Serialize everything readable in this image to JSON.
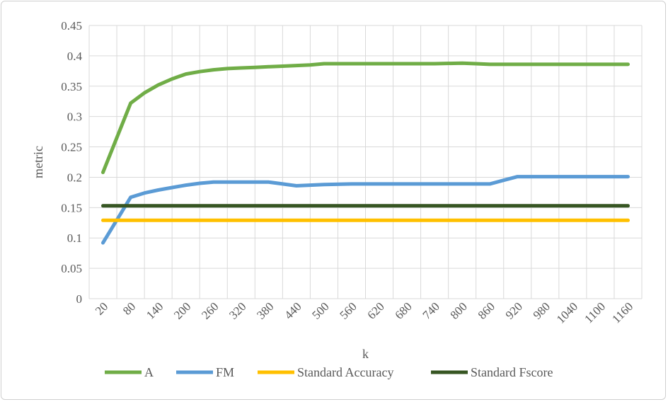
{
  "chart_data": {
    "type": "line",
    "title": "",
    "xlabel": "k",
    "ylabel": "metric",
    "ylim": [
      0,
      0.45
    ],
    "yticks": [
      "0",
      "0.05",
      "0.1",
      "0.15",
      "0.2",
      "0.25",
      "0.3",
      "0.35",
      "0.4",
      "0.45"
    ],
    "x": [
      20,
      80,
      140,
      200,
      260,
      320,
      380,
      440,
      500,
      560,
      620,
      680,
      740,
      800,
      860,
      920,
      980,
      1040,
      1100,
      1160
    ],
    "x_tick_labels": [
      "20",
      "80",
      "140",
      "200",
      "260",
      "320",
      "380",
      "440",
      "500",
      "560",
      "620",
      "680",
      "740",
      "800",
      "860",
      "920",
      "980",
      "1040",
      "1100",
      "1160"
    ],
    "grid": true,
    "legend_position": "bottom",
    "series": [
      {
        "name": "A",
        "color": "#70ad47",
        "x": [
          20,
          80,
          110,
          140,
          170,
          200,
          230,
          260,
          290,
          320,
          350,
          380,
          410,
          440,
          470,
          500,
          560,
          620,
          680,
          740,
          800,
          830,
          860,
          920,
          980,
          1040,
          1100,
          1160
        ],
        "values": [
          0.208,
          0.322,
          0.339,
          0.352,
          0.362,
          0.37,
          0.374,
          0.377,
          0.379,
          0.38,
          0.381,
          0.382,
          0.383,
          0.384,
          0.385,
          0.387,
          0.387,
          0.387,
          0.387,
          0.387,
          0.388,
          0.387,
          0.386,
          0.386,
          0.386,
          0.386,
          0.386,
          0.386
        ]
      },
      {
        "name": "FM",
        "color": "#5b9bd5",
        "x": [
          20,
          80,
          110,
          140,
          170,
          200,
          230,
          260,
          290,
          320,
          350,
          380,
          410,
          440,
          470,
          500,
          560,
          620,
          680,
          740,
          800,
          860,
          890,
          920,
          980,
          1040,
          1100,
          1160
        ],
        "values": [
          0.092,
          0.167,
          0.174,
          0.179,
          0.183,
          0.187,
          0.19,
          0.192,
          0.192,
          0.192,
          0.192,
          0.192,
          0.189,
          0.186,
          0.187,
          0.188,
          0.189,
          0.189,
          0.189,
          0.189,
          0.189,
          0.189,
          0.195,
          0.201,
          0.201,
          0.201,
          0.201,
          0.201
        ]
      },
      {
        "name": "Standard Accuracy",
        "color": "#ffc000",
        "x": [
          20,
          1160
        ],
        "values": [
          0.129,
          0.129
        ]
      },
      {
        "name": "Standard Fscore",
        "color": "#375623",
        "x": [
          20,
          1160
        ],
        "values": [
          0.153,
          0.153
        ]
      }
    ]
  }
}
